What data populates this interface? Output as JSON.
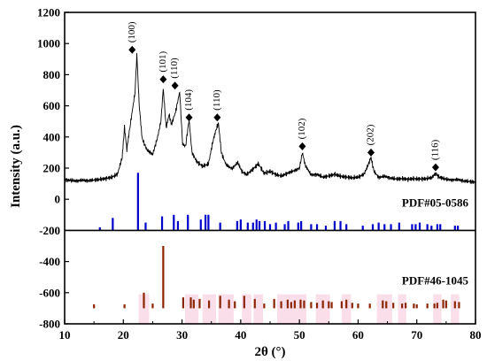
{
  "chart_data": {
    "type": "line",
    "xlabel": "2θ (°)",
    "ylabel": "Intensity (a.u.)",
    "xlim": [
      10,
      80
    ],
    "ylim": [
      -800,
      1200
    ],
    "x_ticks": [
      "10",
      "20",
      "30",
      "40",
      "50",
      "60",
      "70",
      "80"
    ],
    "y_ticks": [
      "-800",
      "-600",
      "-400",
      "-200",
      "0",
      "200",
      "400",
      "600",
      "800",
      "1000",
      "1200"
    ],
    "colors": {
      "pattern": "#000000",
      "ref1": "#0000cc",
      "ref2": "#8b2500",
      "highlight": "#f7c8dc"
    },
    "series": [
      {
        "values": [
          [
            10,
            126
          ],
          [
            11,
            121
          ],
          [
            12,
            118
          ],
          [
            13,
            122
          ],
          [
            14,
            119
          ],
          [
            15,
            124
          ],
          [
            16,
            128
          ],
          [
            17,
            133
          ],
          [
            18,
            141
          ],
          [
            19,
            161
          ],
          [
            19.8,
            268
          ],
          [
            20.2,
            462
          ],
          [
            20.6,
            320
          ],
          [
            21.0,
            430
          ],
          [
            21.5,
            560
          ],
          [
            22.0,
            690
          ],
          [
            22.3,
            930
          ],
          [
            22.7,
            610
          ],
          [
            23.2,
            390
          ],
          [
            24.0,
            318
          ],
          [
            25.0,
            288
          ],
          [
            25.8,
            392
          ],
          [
            26.4,
            500
          ],
          [
            26.8,
            710
          ],
          [
            27.3,
            460
          ],
          [
            27.8,
            545
          ],
          [
            28.2,
            480
          ],
          [
            28.9,
            560
          ],
          [
            29.6,
            690
          ],
          [
            30.1,
            355
          ],
          [
            30.6,
            340
          ],
          [
            31.2,
            510
          ],
          [
            31.7,
            300
          ],
          [
            32.5,
            242
          ],
          [
            33.5,
            212
          ],
          [
            34.5,
            226
          ],
          [
            35.2,
            360
          ],
          [
            35.7,
            435
          ],
          [
            36.2,
            490
          ],
          [
            36.7,
            300
          ],
          [
            37.5,
            222
          ],
          [
            38.5,
            196
          ],
          [
            39.5,
            236
          ],
          [
            40.2,
            178
          ],
          [
            41.0,
            158
          ],
          [
            42.0,
            190
          ],
          [
            43.0,
            228
          ],
          [
            44.0,
            166
          ],
          [
            45.0,
            180
          ],
          [
            46.0,
            158
          ],
          [
            47.0,
            150
          ],
          [
            48.0,
            168
          ],
          [
            49.0,
            182
          ],
          [
            50.0,
            198
          ],
          [
            50.5,
            300
          ],
          [
            51.0,
            218
          ],
          [
            52.0,
            156
          ],
          [
            53.0,
            160
          ],
          [
            54.0,
            142
          ],
          [
            55.0,
            150
          ],
          [
            56.0,
            160
          ],
          [
            57.0,
            148
          ],
          [
            58.0,
            143
          ],
          [
            59.0,
            138
          ],
          [
            60.0,
            142
          ],
          [
            61.0,
            160
          ],
          [
            61.7,
            220
          ],
          [
            62.2,
            270
          ],
          [
            62.7,
            180
          ],
          [
            63.5,
            140
          ],
          [
            64.5,
            148
          ],
          [
            65.5,
            136
          ],
          [
            66.5,
            130
          ],
          [
            67.5,
            133
          ],
          [
            68.5,
            128
          ],
          [
            69.5,
            132
          ],
          [
            70.5,
            130
          ],
          [
            71.5,
            132
          ],
          [
            72.5,
            138
          ],
          [
            73.2,
            165
          ],
          [
            73.8,
            142
          ],
          [
            75.0,
            128
          ],
          [
            76.0,
            124
          ],
          [
            77.0,
            126
          ],
          [
            78.0,
            118
          ],
          [
            79.0,
            114
          ],
          [
            80,
            110
          ]
        ]
      }
    ],
    "peak_annotations": [
      {
        "label": "(100)",
        "x": 21.5,
        "y": 960
      },
      {
        "label": "(101)",
        "x": 26.8,
        "y": 770
      },
      {
        "label": "(110)",
        "x": 28.8,
        "y": 730
      },
      {
        "label": "(104)",
        "x": 31.2,
        "y": 525
      },
      {
        "label": "(110)",
        "x": 36.0,
        "y": 525
      },
      {
        "label": "(102)",
        "x": 50.5,
        "y": 340
      },
      {
        "label": "(202)",
        "x": 62.2,
        "y": 300
      },
      {
        "label": "(116)",
        "x": 73.2,
        "y": 205
      }
    ],
    "reference_patterns": [
      {
        "name": "PDF#05-0586",
        "baseline": -200,
        "peaks": [
          [
            16.0,
            20
          ],
          [
            18.2,
            80
          ],
          [
            22.5,
            370
          ],
          [
            23.8,
            50
          ],
          [
            26.6,
            90
          ],
          [
            28.6,
            100
          ],
          [
            29.3,
            60
          ],
          [
            31.0,
            100
          ],
          [
            33.2,
            70
          ],
          [
            34.0,
            100
          ],
          [
            34.5,
            100
          ],
          [
            36.5,
            50
          ],
          [
            39.4,
            60
          ],
          [
            40.0,
            70
          ],
          [
            41.2,
            50
          ],
          [
            42.1,
            50
          ],
          [
            42.7,
            70
          ],
          [
            43.2,
            60
          ],
          [
            44.1,
            60
          ],
          [
            45.0,
            40
          ],
          [
            46.0,
            50
          ],
          [
            47.5,
            40
          ],
          [
            48.1,
            60
          ],
          [
            49.8,
            50
          ],
          [
            50.3,
            60
          ],
          [
            52.0,
            40
          ],
          [
            53.0,
            40
          ],
          [
            54.5,
            30
          ],
          [
            56.0,
            60
          ],
          [
            57.0,
            60
          ],
          [
            58.0,
            40
          ],
          [
            60.8,
            30
          ],
          [
            62.5,
            40
          ],
          [
            63.5,
            50
          ],
          [
            64.5,
            40
          ],
          [
            65.6,
            40
          ],
          [
            67.0,
            50
          ],
          [
            69.2,
            40
          ],
          [
            69.8,
            40
          ],
          [
            70.5,
            50
          ],
          [
            71.8,
            40
          ],
          [
            72.5,
            30
          ],
          [
            73.5,
            40
          ],
          [
            74.0,
            40
          ],
          [
            76.5,
            30
          ],
          [
            77.0,
            30
          ]
        ]
      },
      {
        "name": "PDF#46-1045",
        "baseline": -700,
        "peaks": [
          [
            15.0,
            25
          ],
          [
            20.2,
            25
          ],
          [
            23.5,
            100
          ],
          [
            25.0,
            30
          ],
          [
            26.8,
            400
          ],
          [
            30.2,
            70
          ],
          [
            31.5,
            70
          ],
          [
            32.0,
            55
          ],
          [
            33.0,
            60
          ],
          [
            34.6,
            50
          ],
          [
            36.5,
            80
          ],
          [
            38.0,
            55
          ],
          [
            39.0,
            45
          ],
          [
            40.6,
            80
          ],
          [
            42.4,
            60
          ],
          [
            44.0,
            30
          ],
          [
            45.7,
            60
          ],
          [
            46.9,
            45
          ],
          [
            48.0,
            55
          ],
          [
            48.6,
            40
          ],
          [
            49.2,
            50
          ],
          [
            50.2,
            55
          ],
          [
            50.8,
            50
          ],
          [
            52.0,
            40
          ],
          [
            53.0,
            35
          ],
          [
            54.0,
            50
          ],
          [
            55.0,
            45
          ],
          [
            55.5,
            40
          ],
          [
            57.2,
            45
          ],
          [
            58.0,
            55
          ],
          [
            59.0,
            35
          ],
          [
            60.0,
            30
          ],
          [
            62.0,
            30
          ],
          [
            64.2,
            50
          ],
          [
            64.8,
            45
          ],
          [
            66.0,
            35
          ],
          [
            67.5,
            30
          ],
          [
            68.1,
            35
          ],
          [
            69.5,
            30
          ],
          [
            70.0,
            25
          ],
          [
            71.8,
            30
          ],
          [
            73.0,
            30
          ],
          [
            73.5,
            35
          ],
          [
            74.5,
            55
          ],
          [
            75.0,
            50
          ],
          [
            76.5,
            45
          ],
          [
            77.2,
            40
          ]
        ]
      }
    ],
    "highlight_bands": [
      [
        22.6,
        24.4
      ],
      [
        30.5,
        32.8
      ],
      [
        33.5,
        35.8
      ],
      [
        36.2,
        38.8
      ],
      [
        40.2,
        41.8
      ],
      [
        42.2,
        43.8
      ],
      [
        46.2,
        48.8
      ],
      [
        48.8,
        51.2
      ],
      [
        52.8,
        55.2
      ],
      [
        57.2,
        58.8
      ],
      [
        63.2,
        65.8
      ],
      [
        66.8,
        68.2
      ],
      [
        72.8,
        74.2
      ],
      [
        75.8,
        77.2
      ]
    ]
  }
}
